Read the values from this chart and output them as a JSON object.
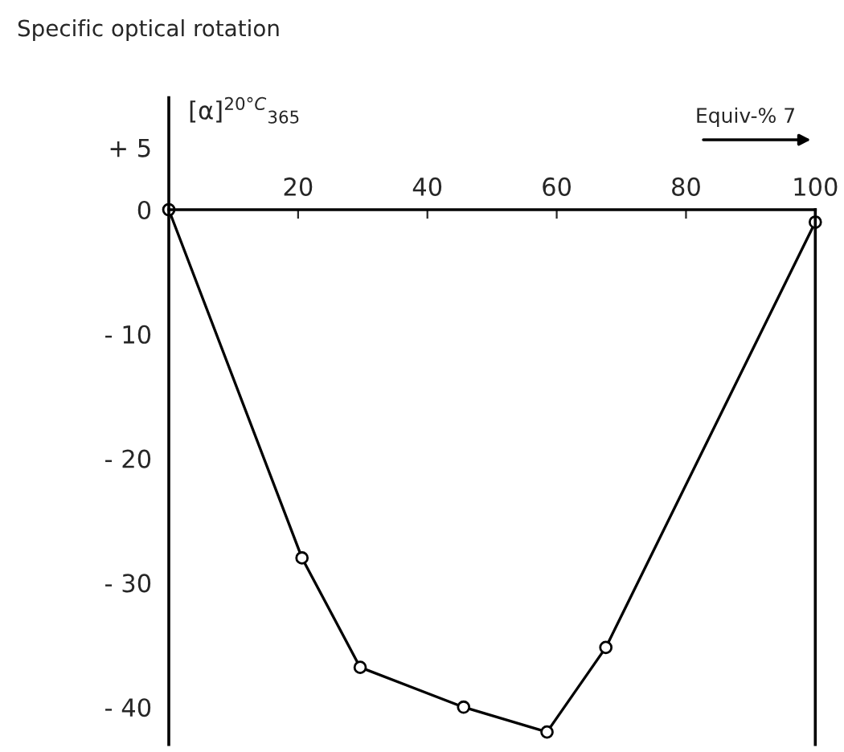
{
  "chart_data": {
    "type": "line",
    "title": "Specific optical rotation",
    "ylabel": "[α]$^{20°C}$$_{365}$",
    "xlabel": "Equiv-% 7",
    "x": [
      0,
      20.6,
      29.6,
      45.6,
      58.5,
      67.6,
      100
    ],
    "series": [
      {
        "color": "#000000",
        "values": [
          0,
          -28.0,
          -36.8,
          -40.0,
          -42.0,
          -35.2,
          -1.0
        ]
      }
    ],
    "xlim": [
      0,
      100
    ],
    "xticks": [
      20,
      40,
      60,
      80,
      100
    ],
    "ylim": [
      -43,
      9
    ],
    "yticks": [
      {
        "value": 5,
        "label": "+ 5"
      },
      0,
      {
        "value": -10,
        "label": "- 10"
      },
      {
        "value": -20,
        "label": "- 20"
      },
      {
        "value": -30,
        "label": "- 30"
      },
      {
        "value": -40,
        "label": "- 40"
      }
    ],
    "marker": "circle",
    "line_style": "solid",
    "grid": false,
    "legend": false
  }
}
